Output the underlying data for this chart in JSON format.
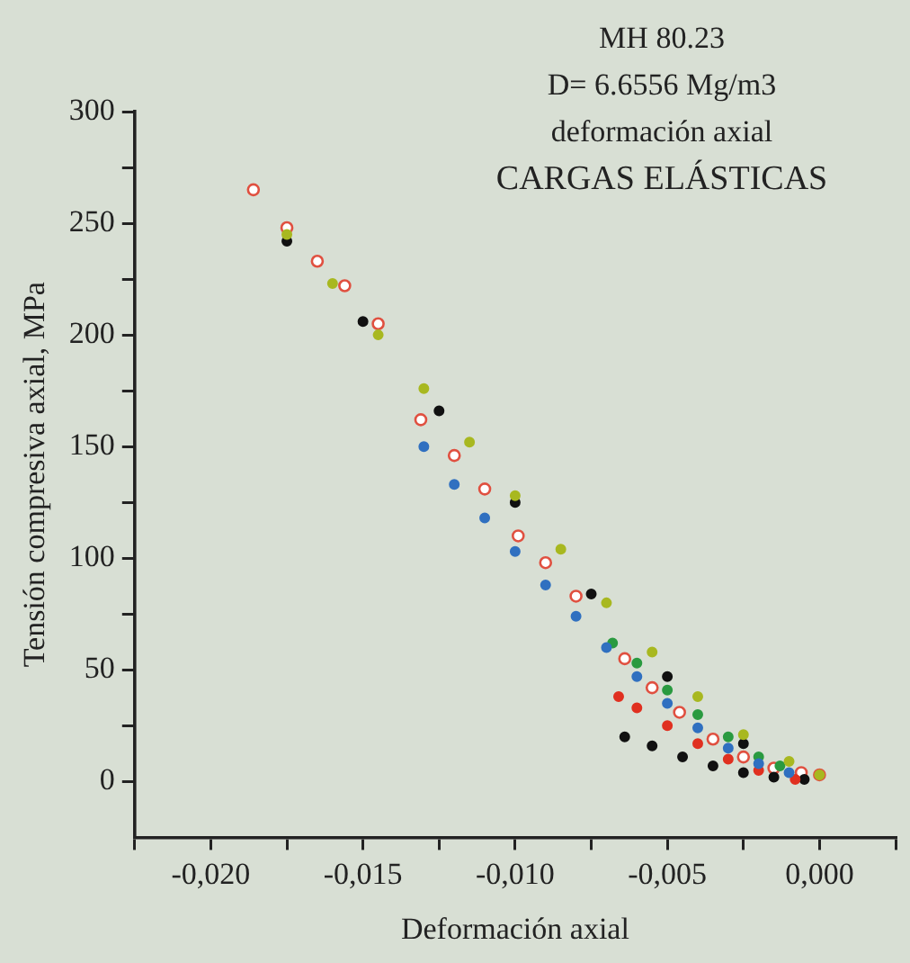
{
  "chart_data": {
    "type": "scatter",
    "xlabel": "Deformación axial",
    "ylabel": "Tensión compresiva axial, MPa",
    "annotations": [
      "MH 80.23",
      "D= 6.6556 Mg/m3",
      "deformación axial",
      "CARGAS ELÁSTICAS"
    ],
    "xlim": [
      -0.0225,
      0.0025
    ],
    "ylim": [
      -25,
      300
    ],
    "xticks": [
      {
        "value": -0.0225,
        "label": null
      },
      {
        "value": -0.02,
        "label": "-0,020"
      },
      {
        "value": -0.0175,
        "label": null
      },
      {
        "value": -0.015,
        "label": "-0,015"
      },
      {
        "value": -0.0125,
        "label": null
      },
      {
        "value": -0.01,
        "label": "-0,010"
      },
      {
        "value": -0.0075,
        "label": null
      },
      {
        "value": -0.005,
        "label": "-0,005"
      },
      {
        "value": -0.0025,
        "label": null
      },
      {
        "value": 0,
        "label": "0,000"
      },
      {
        "value": 0.0025,
        "label": null
      }
    ],
    "yticks": [
      0,
      {
        "value": 25,
        "label": null
      },
      50,
      {
        "value": 75,
        "label": null
      },
      100,
      {
        "value": 125,
        "label": null
      },
      150,
      {
        "value": 175,
        "label": null
      },
      200,
      {
        "value": 225,
        "label": null
      },
      250,
      {
        "value": 275,
        "label": null
      },
      300
    ],
    "grid": false,
    "legend": false,
    "marker": "circle",
    "series": [
      {
        "color": "#a8b820",
        "x": [
          -0.0175,
          -0.016,
          -0.0145,
          -0.013,
          -0.0115,
          -0.01,
          -0.0085,
          -0.007,
          -0.0055,
          -0.004,
          -0.0025,
          -0.001,
          0
        ],
        "values": [
          245,
          223,
          200,
          176,
          152,
          128,
          104,
          80,
          58,
          38,
          21,
          9,
          3
        ]
      },
      {
        "color": "#111111",
        "x": [
          -0.0175,
          -0.015,
          -0.0125,
          -0.01,
          -0.0075,
          -0.005,
          -0.0025
        ],
        "values": [
          242,
          206,
          166,
          125,
          84,
          47,
          17
        ]
      },
      {
        "color": "#3070c0",
        "x": [
          -0.013,
          -0.012,
          -0.011,
          -0.01,
          -0.009,
          -0.008,
          -0.007,
          -0.006,
          -0.005,
          -0.004,
          -0.003,
          -0.002,
          -0.001
        ],
        "values": [
          150,
          133,
          118,
          103,
          88,
          74,
          60,
          47,
          35,
          24,
          15,
          8,
          4
        ]
      },
      {
        "color": "#2a9a40",
        "x": [
          -0.0068,
          -0.006,
          -0.005,
          -0.004,
          -0.003,
          -0.002,
          -0.0013
        ],
        "values": [
          62,
          53,
          41,
          30,
          20,
          11,
          7
        ]
      },
      {
        "color": "#e03020",
        "x": [
          -0.0066,
          -0.006,
          -0.005,
          -0.004,
          -0.003,
          -0.002,
          -0.0008
        ],
        "values": [
          38,
          33,
          25,
          17,
          10,
          5,
          1
        ]
      },
      {
        "color": "#111111",
        "x": [
          -0.0064,
          -0.0055,
          -0.0045,
          -0.0035,
          -0.0025,
          -0.0015,
          -0.0005
        ],
        "values": [
          20,
          16,
          11,
          7,
          4,
          2,
          1
        ]
      },
      {
        "color": "#e05040",
        "x": [
          -0.0186,
          -0.0175,
          -0.0165,
          -0.0156,
          -0.0145,
          -0.0131,
          -0.012,
          -0.011,
          -0.0099,
          -0.009,
          -0.008,
          -0.0064,
          -0.0055,
          -0.0046,
          -0.0035,
          -0.0025,
          -0.0015,
          -0.0006,
          0
        ],
        "values": [
          265,
          248,
          233,
          222,
          205,
          162,
          146,
          131,
          110,
          98,
          83,
          55,
          42,
          31,
          19,
          11,
          6,
          4,
          3
        ]
      }
    ]
  }
}
